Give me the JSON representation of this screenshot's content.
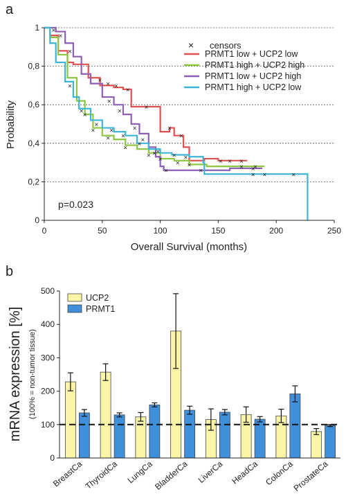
{
  "panels": {
    "a": {
      "letter": "a"
    },
    "b": {
      "letter": "b"
    }
  },
  "chart_data": [
    {
      "type": "line",
      "xlabel": "Overall Survival (months)",
      "ylabel": "Probability",
      "xlim": [
        0,
        250
      ],
      "ylim": [
        0,
        1
      ],
      "x_ticks": [
        "0",
        "50",
        "100",
        "150",
        "200",
        "250"
      ],
      "y_ticks": [
        "0",
        "0,2",
        "0,4",
        "0,6",
        "0,8",
        "1"
      ],
      "grid": "dashed horizontal",
      "legend_placement": "top-right",
      "censor_label": "censors",
      "annotation": "p=0.023",
      "series": [
        {
          "name": "PRMT1 low + UCP2 low",
          "color": "#e05050",
          "points": [
            [
              0,
              1
            ],
            [
              5,
              0.96
            ],
            [
              12,
              0.88
            ],
            [
              20,
              0.82
            ],
            [
              25,
              0.81
            ],
            [
              38,
              0.74
            ],
            [
              48,
              0.7
            ],
            [
              60,
              0.69
            ],
            [
              68,
              0.68
            ],
            [
              75,
              0.59
            ],
            [
              88,
              0.59
            ],
            [
              92,
              0.59
            ],
            [
              100,
              0.46
            ],
            [
              108,
              0.48
            ],
            [
              112,
              0.44
            ],
            [
              120,
              0.38
            ],
            [
              125,
              0.31
            ],
            [
              138,
              0.32
            ],
            [
              150,
              0.31
            ],
            [
              175,
              0.31
            ]
          ],
          "censors": [
            [
              48,
              0.73
            ],
            [
              55,
              0.71
            ],
            [
              62,
              0.7
            ],
            [
              72,
              0.68
            ],
            [
              88,
              0.59
            ],
            [
              108,
              0.48
            ],
            [
              118,
              0.44
            ],
            [
              152,
              0.31
            ],
            [
              160,
              0.31
            ],
            [
              170,
              0.31
            ]
          ]
        },
        {
          "name": "PRMT1 high + UCP2 high",
          "color": "#8dc63f",
          "points": [
            [
              0,
              1
            ],
            [
              5,
              0.95
            ],
            [
              12,
              0.86
            ],
            [
              20,
              0.74
            ],
            [
              28,
              0.62
            ],
            [
              35,
              0.55
            ],
            [
              42,
              0.48
            ],
            [
              50,
              0.44
            ],
            [
              60,
              0.42
            ],
            [
              70,
              0.39
            ],
            [
              80,
              0.37
            ],
            [
              90,
              0.35
            ],
            [
              100,
              0.32
            ],
            [
              112,
              0.31
            ],
            [
              125,
              0.29
            ],
            [
              140,
              0.28
            ],
            [
              165,
              0.28
            ],
            [
              190,
              0.28
            ]
          ],
          "censors": [
            [
              32,
              0.57
            ],
            [
              42,
              0.47
            ],
            [
              55,
              0.43
            ],
            [
              70,
              0.38
            ],
            [
              90,
              0.34
            ],
            [
              100,
              0.32
            ],
            [
              115,
              0.3
            ],
            [
              125,
              0.29
            ],
            [
              170,
              0.28
            ],
            [
              182,
              0.28
            ]
          ]
        },
        {
          "name": "PRMT1 low + UCP2 high",
          "color": "#8e5fb5",
          "points": [
            [
              0,
              1
            ],
            [
              10,
              0.98
            ],
            [
              18,
              0.92
            ],
            [
              25,
              0.85
            ],
            [
              32,
              0.76
            ],
            [
              40,
              0.71
            ],
            [
              50,
              0.64
            ],
            [
              60,
              0.6
            ],
            [
              68,
              0.55
            ],
            [
              75,
              0.5
            ],
            [
              82,
              0.45
            ],
            [
              90,
              0.38
            ],
            [
              96,
              0.33
            ],
            [
              100,
              0.28
            ],
            [
              103,
              0.26
            ],
            [
              125,
              0.26
            ],
            [
              140,
              0.26
            ],
            [
              160,
              0.27
            ],
            [
              188,
              0.27
            ]
          ],
          "censors": [
            [
              8,
              0.99
            ],
            [
              14,
              0.96
            ],
            [
              22,
              0.88
            ],
            [
              56,
              0.62
            ],
            [
              65,
              0.57
            ],
            [
              78,
              0.48
            ],
            [
              85,
              0.42
            ],
            [
              95,
              0.35
            ],
            [
              105,
              0.26
            ],
            [
              135,
              0.26
            ],
            [
              180,
              0.27
            ]
          ]
        },
        {
          "name": "PRMT1 high + UCP2 low",
          "color": "#3db5d6",
          "points": [
            [
              0,
              1
            ],
            [
              5,
              0.92
            ],
            [
              10,
              0.82
            ],
            [
              18,
              0.72
            ],
            [
              25,
              0.64
            ],
            [
              30,
              0.58
            ],
            [
              40,
              0.52
            ],
            [
              50,
              0.48
            ],
            [
              60,
              0.46
            ],
            [
              70,
              0.44
            ],
            [
              80,
              0.4
            ],
            [
              90,
              0.37
            ],
            [
              100,
              0.35
            ],
            [
              110,
              0.34
            ],
            [
              125,
              0.33
            ],
            [
              137,
              0.3
            ],
            [
              138,
              0.24
            ],
            [
              180,
              0.24
            ],
            [
              200,
              0.24
            ],
            [
              226,
              0.24
            ],
            [
              227,
              0
            ]
          ],
          "censors": [
            [
              22,
              0.7
            ],
            [
              35,
              0.55
            ],
            [
              45,
              0.5
            ],
            [
              58,
              0.47
            ],
            [
              68,
              0.44
            ],
            [
              82,
              0.4
            ],
            [
              98,
              0.36
            ],
            [
              112,
              0.34
            ],
            [
              122,
              0.33
            ],
            [
              180,
              0.24
            ],
            [
              190,
              0.24
            ],
            [
              215,
              0.24
            ]
          ]
        }
      ]
    },
    {
      "type": "bar",
      "ylabel": "mRNA expression [%]",
      "ylabel_note": "(100%  = non-tumor tissue)",
      "ylim": [
        0,
        500
      ],
      "y_ticks": [
        "0",
        "100",
        "200",
        "300",
        "400",
        "500"
      ],
      "reference_line": 100,
      "legend_placement": "top-left",
      "categories": [
        "BreastCa",
        "ThyroidCa",
        "LungCa",
        "BladderCa",
        "LiverCa",
        "HeadCa",
        "ColonCa",
        "ProstateCa"
      ],
      "series": [
        {
          "name": "UCP2",
          "color": "#fbf5a8",
          "values": [
            228,
            257,
            123,
            380,
            115,
            130,
            126,
            79
          ],
          "errors": [
            27,
            25,
            13,
            112,
            32,
            23,
            20,
            9
          ]
        },
        {
          "name": "PRMT1",
          "color": "#3f8fdb",
          "values": [
            135,
            129,
            159,
            143,
            137,
            116,
            192,
            97
          ],
          "errors": [
            10,
            6,
            6,
            12,
            8,
            8,
            24,
            3
          ]
        }
      ]
    }
  ]
}
